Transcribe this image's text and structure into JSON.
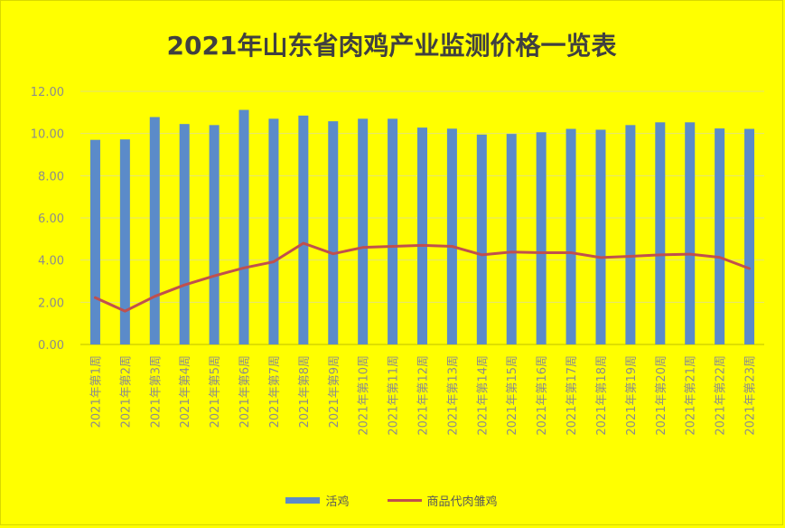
{
  "chart_data": {
    "type": "bar",
    "title": "2021年山东省肉鸡产业监测价格一览表",
    "categories": [
      "2021年第1周",
      "2021年第2周",
      "2021年第3周",
      "2021年第4周",
      "2021年第5周",
      "2021年第6周",
      "2021年第7周",
      "2021年第8周",
      "2021年第9周",
      "2021年第10周",
      "2021年第11周",
      "2021年第12周",
      "2021年第13周",
      "2021年第14周",
      "2021年第15周",
      "2021年第16周",
      "2021年第17周",
      "2021年第18周",
      "2021年第19周",
      "2021年第20周",
      "2021年第21周",
      "2021年第22周",
      "2021年第23周"
    ],
    "series": [
      {
        "name": "活鸡",
        "type": "bar",
        "color": "#5b8bc9",
        "values": [
          9.7,
          9.72,
          10.78,
          10.45,
          10.4,
          11.12,
          10.7,
          10.85,
          10.58,
          10.7,
          10.7,
          10.28,
          10.23,
          9.95,
          9.98,
          10.06,
          10.22,
          10.18,
          10.4,
          10.53,
          10.53,
          10.24,
          10.22
        ]
      },
      {
        "name": "商品代肉雏鸡",
        "type": "line",
        "color": "#c0504d",
        "values": [
          2.22,
          1.58,
          2.28,
          2.82,
          3.25,
          3.63,
          3.92,
          4.8,
          4.3,
          4.6,
          4.65,
          4.7,
          4.65,
          4.25,
          4.38,
          4.35,
          4.35,
          4.12,
          4.18,
          4.25,
          4.28,
          4.13,
          3.6
        ]
      }
    ],
    "yticks": [
      "0.00",
      "2.00",
      "4.00",
      "6.00",
      "8.00",
      "10.00",
      "12.00"
    ],
    "ylim": [
      0,
      12
    ],
    "grid": true,
    "legend_position": "bottom"
  }
}
